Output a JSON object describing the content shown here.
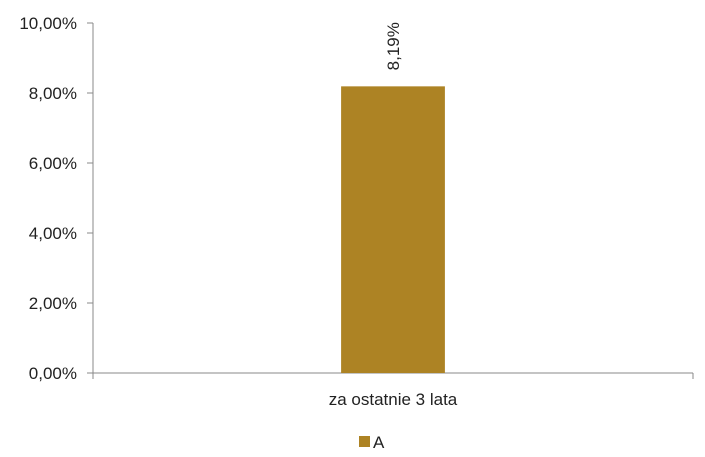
{
  "chart_data": {
    "type": "bar",
    "categories": [
      "za ostatnie 3 lata"
    ],
    "series": [
      {
        "name": "A",
        "values": [
          8.19
        ],
        "data_labels": [
          "8,19%"
        ],
        "color": "#AD8324"
      }
    ],
    "ylim": [
      0,
      10
    ],
    "yticks": [
      {
        "value": 0,
        "label": "0,00%"
      },
      {
        "value": 2,
        "label": "2,00%"
      },
      {
        "value": 4,
        "label": "4,00%"
      },
      {
        "value": 6,
        "label": "6,00%"
      },
      {
        "value": 8,
        "label": "8,00%"
      },
      {
        "value": 10,
        "label": "10,00%"
      }
    ],
    "grid": false,
    "legend_position": "bottom",
    "axis_color": "#888888"
  }
}
